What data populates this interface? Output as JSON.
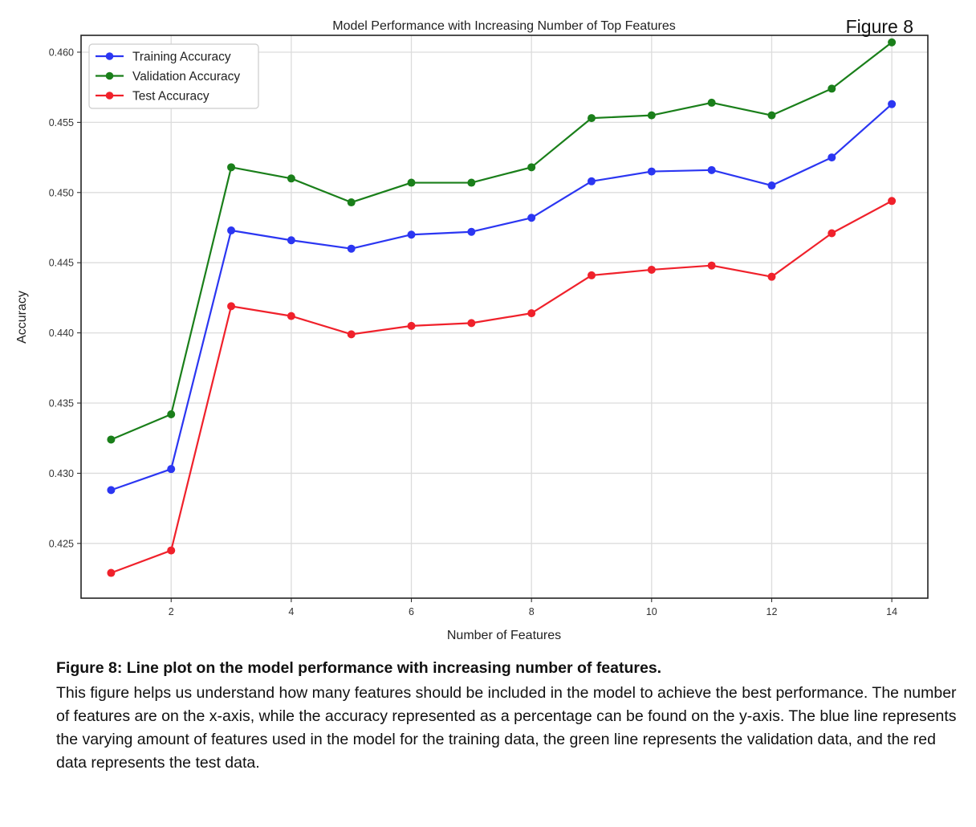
{
  "figure_label": "Figure 8",
  "chart_data": {
    "type": "line",
    "title": "Model Performance with Increasing Number of Top Features",
    "xlabel": "Number of Features",
    "ylabel": "Accuracy",
    "x": [
      1,
      2,
      3,
      4,
      5,
      6,
      7,
      8,
      9,
      10,
      11,
      12,
      13,
      14
    ],
    "xlim": [
      0.5,
      14.6
    ],
    "ylim": [
      0.4211,
      0.4612
    ],
    "xticks": [
      2,
      4,
      6,
      8,
      10,
      12,
      14
    ],
    "yticks": [
      0.425,
      0.43,
      0.435,
      0.44,
      0.445,
      0.45,
      0.455,
      0.46
    ],
    "ytick_labels": [
      "0.425",
      "0.430",
      "0.435",
      "0.440",
      "0.445",
      "0.450",
      "0.455",
      "0.460"
    ],
    "grid": true,
    "legend_position": "top-left",
    "series": [
      {
        "name": "Training Accuracy",
        "color": "#2b36f2",
        "values": [
          0.4288,
          0.4303,
          0.4473,
          0.4466,
          0.446,
          0.447,
          0.4472,
          0.4482,
          0.4508,
          0.4515,
          0.4516,
          0.4505,
          0.4525,
          0.4563
        ]
      },
      {
        "name": "Validation Accuracy",
        "color": "#1a7f1a",
        "values": [
          0.4324,
          0.4342,
          0.4518,
          0.451,
          0.4493,
          0.4507,
          0.4507,
          0.4518,
          0.4553,
          0.4555,
          0.4564,
          0.4555,
          0.4574,
          0.4607
        ]
      },
      {
        "name": "Test Accuracy",
        "color": "#f0212b",
        "values": [
          0.4229,
          0.4245,
          0.4419,
          0.4412,
          0.4399,
          0.4405,
          0.4407,
          0.4414,
          0.4441,
          0.4445,
          0.4448,
          0.444,
          0.4471,
          0.4494
        ]
      }
    ]
  },
  "caption": {
    "title": "Figure 8: Line plot on the model performance with increasing number of features.",
    "body": "This figure helps us understand how many features should be included in the model to achieve the best performance. The number of features are on the x-axis, while the accuracy represented as a percentage can be found on the y-axis. The blue line represents the varying amount of features used in the model for the training data, the green line represents the validation data, and the red data represents the test data."
  }
}
